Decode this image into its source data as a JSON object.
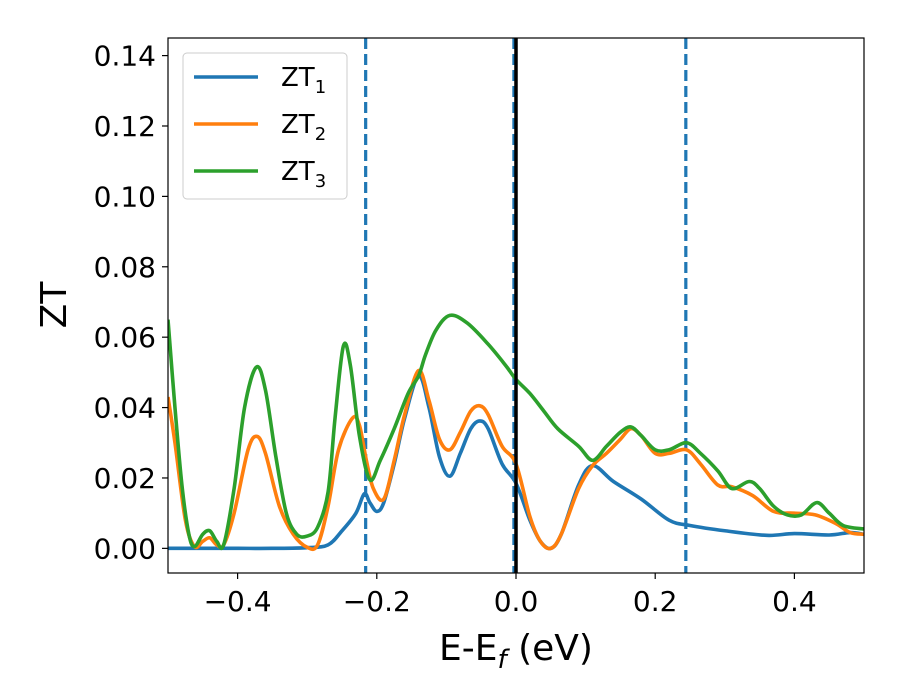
{
  "chart_data": {
    "type": "line",
    "xlabel": "E-E",
    "xlabel_sub": "f",
    "xlabel_unit": " (eV)",
    "ylabel": "ZT",
    "xlim": [
      -0.5,
      0.5
    ],
    "ylim": [
      -0.007,
      0.145
    ],
    "xticks": [
      -0.4,
      -0.2,
      0.0,
      0.2,
      0.4
    ],
    "xtick_labels": [
      "−0.4",
      "−0.2",
      "0.0",
      "0.2",
      "0.4"
    ],
    "yticks": [
      0.0,
      0.02,
      0.04,
      0.06,
      0.08,
      0.1,
      0.12,
      0.14
    ],
    "ytick_labels": [
      "0.00",
      "0.02",
      "0.04",
      "0.06",
      "0.08",
      "0.10",
      "0.12",
      "0.14"
    ],
    "legend_position": "top-left",
    "grid": false,
    "vlines": [
      {
        "x": -0.216,
        "style": "dashed",
        "color": "#1f77b4"
      },
      {
        "x": -0.003,
        "style": "dashed",
        "color": "#1f77b4"
      },
      {
        "x": 0.0,
        "style": "solid",
        "color": "#000000"
      },
      {
        "x": 0.244,
        "style": "dashed",
        "color": "#1f77b4"
      }
    ],
    "series": [
      {
        "name": "ZT",
        "name_sub": "1",
        "color": "#1f77b4",
        "points": [
          [
            -0.5,
            0.0
          ],
          [
            -0.45,
            0.0
          ],
          [
            -0.4,
            0.0
          ],
          [
            -0.35,
            0.0
          ],
          [
            -0.3,
            0.0002
          ],
          [
            -0.27,
            0.001
          ],
          [
            -0.25,
            0.005
          ],
          [
            -0.23,
            0.01
          ],
          [
            -0.218,
            0.0155
          ],
          [
            -0.21,
            0.013
          ],
          [
            -0.2,
            0.0105
          ],
          [
            -0.19,
            0.013
          ],
          [
            -0.175,
            0.024
          ],
          [
            -0.16,
            0.037
          ],
          [
            -0.14,
            0.049
          ],
          [
            -0.125,
            0.04
          ],
          [
            -0.11,
            0.026
          ],
          [
            -0.095,
            0.0205
          ],
          [
            -0.08,
            0.027
          ],
          [
            -0.065,
            0.034
          ],
          [
            -0.052,
            0.0362
          ],
          [
            -0.04,
            0.034
          ],
          [
            -0.02,
            0.024
          ],
          [
            0.0,
            0.0185
          ],
          [
            0.02,
            0.008
          ],
          [
            0.035,
            0.002
          ],
          [
            0.05,
            0.0
          ],
          [
            0.065,
            0.004
          ],
          [
            0.09,
            0.018
          ],
          [
            0.11,
            0.0235
          ],
          [
            0.14,
            0.019
          ],
          [
            0.18,
            0.014
          ],
          [
            0.22,
            0.008
          ],
          [
            0.25,
            0.0065
          ],
          [
            0.3,
            0.005
          ],
          [
            0.36,
            0.0037
          ],
          [
            0.4,
            0.0042
          ],
          [
            0.45,
            0.0038
          ],
          [
            0.48,
            0.0045
          ],
          [
            0.5,
            0.004
          ]
        ]
      },
      {
        "name": "ZT",
        "name_sub": "2",
        "color": "#ff7f0e",
        "points": [
          [
            -0.5,
            0.043
          ],
          [
            -0.49,
            0.03
          ],
          [
            -0.475,
            0.008
          ],
          [
            -0.462,
            0.0005
          ],
          [
            -0.45,
            0.002
          ],
          [
            -0.44,
            0.003
          ],
          [
            -0.43,
            0.001
          ],
          [
            -0.42,
            0.001
          ],
          [
            -0.405,
            0.01
          ],
          [
            -0.385,
            0.028
          ],
          [
            -0.372,
            0.0318
          ],
          [
            -0.36,
            0.027
          ],
          [
            -0.34,
            0.012
          ],
          [
            -0.32,
            0.004
          ],
          [
            -0.3,
            0.0003
          ],
          [
            -0.285,
            0.001
          ],
          [
            -0.27,
            0.012
          ],
          [
            -0.255,
            0.028
          ],
          [
            -0.235,
            0.037
          ],
          [
            -0.225,
            0.035
          ],
          [
            -0.215,
            0.025
          ],
          [
            -0.205,
            0.017
          ],
          [
            -0.19,
            0.014
          ],
          [
            -0.175,
            0.025
          ],
          [
            -0.16,
            0.038
          ],
          [
            -0.14,
            0.0505
          ],
          [
            -0.125,
            0.042
          ],
          [
            -0.11,
            0.031
          ],
          [
            -0.095,
            0.028
          ],
          [
            -0.08,
            0.033
          ],
          [
            -0.065,
            0.039
          ],
          [
            -0.052,
            0.0405
          ],
          [
            -0.04,
            0.038
          ],
          [
            -0.02,
            0.029
          ],
          [
            0.0,
            0.024
          ],
          [
            0.02,
            0.009
          ],
          [
            0.035,
            0.002
          ],
          [
            0.05,
            0.0
          ],
          [
            0.065,
            0.004
          ],
          [
            0.09,
            0.017
          ],
          [
            0.11,
            0.0235
          ],
          [
            0.13,
            0.027
          ],
          [
            0.15,
            0.031
          ],
          [
            0.165,
            0.034
          ],
          [
            0.18,
            0.032
          ],
          [
            0.2,
            0.027
          ],
          [
            0.22,
            0.027
          ],
          [
            0.245,
            0.028
          ],
          [
            0.265,
            0.024
          ],
          [
            0.29,
            0.018
          ],
          [
            0.31,
            0.0175
          ],
          [
            0.34,
            0.015
          ],
          [
            0.37,
            0.0105
          ],
          [
            0.4,
            0.01
          ],
          [
            0.43,
            0.0095
          ],
          [
            0.46,
            0.007
          ],
          [
            0.48,
            0.0045
          ],
          [
            0.5,
            0.004
          ]
        ]
      },
      {
        "name": "ZT",
        "name_sub": "3",
        "color": "#2ca02c",
        "points": [
          [
            -0.5,
            0.065
          ],
          [
            -0.49,
            0.04
          ],
          [
            -0.48,
            0.018
          ],
          [
            -0.47,
            0.004
          ],
          [
            -0.462,
            0.0005
          ],
          [
            -0.45,
            0.004
          ],
          [
            -0.44,
            0.005
          ],
          [
            -0.43,
            0.002
          ],
          [
            -0.42,
            0.001
          ],
          [
            -0.405,
            0.017
          ],
          [
            -0.39,
            0.04
          ],
          [
            -0.373,
            0.0515
          ],
          [
            -0.36,
            0.045
          ],
          [
            -0.345,
            0.026
          ],
          [
            -0.33,
            0.01
          ],
          [
            -0.315,
            0.004
          ],
          [
            -0.3,
            0.0035
          ],
          [
            -0.285,
            0.006
          ],
          [
            -0.27,
            0.016
          ],
          [
            -0.26,
            0.037
          ],
          [
            -0.248,
            0.0575
          ],
          [
            -0.238,
            0.052
          ],
          [
            -0.225,
            0.032
          ],
          [
            -0.21,
            0.0195
          ],
          [
            -0.195,
            0.025
          ],
          [
            -0.175,
            0.034
          ],
          [
            -0.155,
            0.044
          ],
          [
            -0.14,
            0.049
          ],
          [
            -0.13,
            0.055
          ],
          [
            -0.115,
            0.062
          ],
          [
            -0.095,
            0.0662
          ],
          [
            -0.07,
            0.064
          ],
          [
            -0.04,
            0.058
          ],
          [
            -0.015,
            0.052
          ],
          [
            0.0,
            0.048
          ],
          [
            0.02,
            0.044
          ],
          [
            0.04,
            0.039
          ],
          [
            0.06,
            0.034
          ],
          [
            0.09,
            0.029
          ],
          [
            0.11,
            0.025
          ],
          [
            0.13,
            0.029
          ],
          [
            0.15,
            0.033
          ],
          [
            0.165,
            0.0345
          ],
          [
            0.18,
            0.032
          ],
          [
            0.2,
            0.028
          ],
          [
            0.22,
            0.028
          ],
          [
            0.245,
            0.03
          ],
          [
            0.265,
            0.027
          ],
          [
            0.29,
            0.022
          ],
          [
            0.31,
            0.017
          ],
          [
            0.335,
            0.019
          ],
          [
            0.35,
            0.017
          ],
          [
            0.37,
            0.012
          ],
          [
            0.39,
            0.0095
          ],
          [
            0.41,
            0.0095
          ],
          [
            0.432,
            0.013
          ],
          [
            0.45,
            0.01
          ],
          [
            0.47,
            0.0065
          ],
          [
            0.5,
            0.0055
          ]
        ]
      }
    ]
  }
}
